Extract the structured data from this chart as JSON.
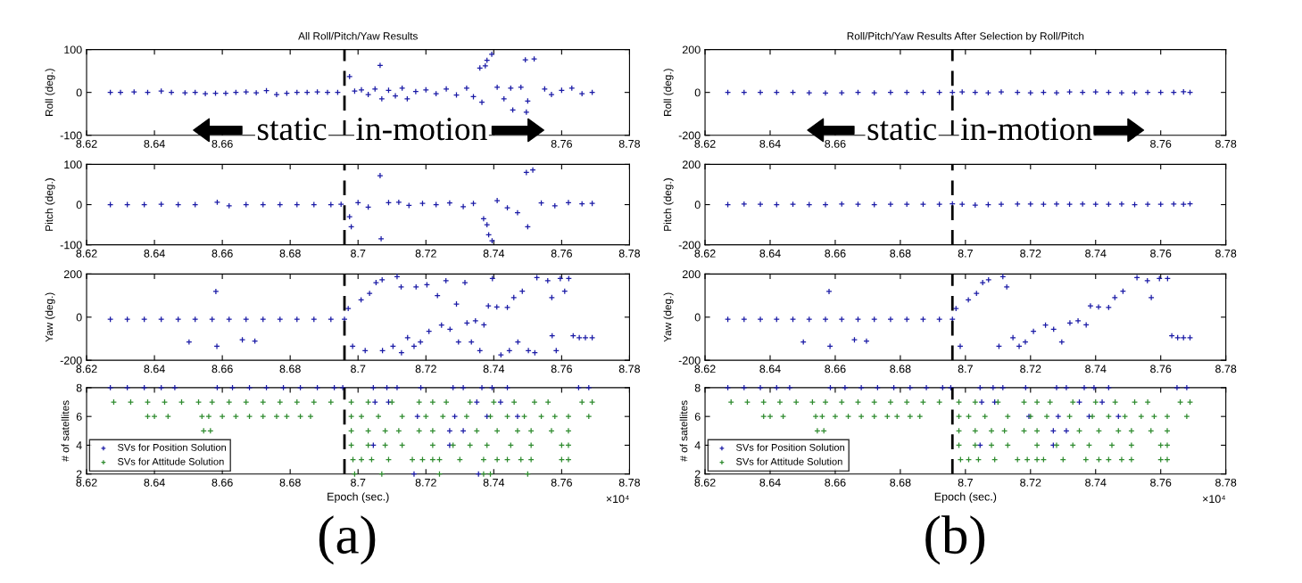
{
  "chart_data": [
    {
      "type": "scatter",
      "title": "All Roll/Pitch/Yaw Results",
      "ylabel": "Roll (deg.)",
      "xlim": [
        8.62,
        8.78
      ],
      "xticks": [
        8.62,
        8.64,
        8.66,
        {
          "value": 8.68,
          "label": null
        },
        {
          "value": 8.7,
          "label": null
        },
        {
          "value": 8.72,
          "label": null
        },
        {
          "value": 8.74,
          "label": null
        },
        8.76,
        8.78
      ],
      "ylim": [
        -100,
        100
      ],
      "yticks": [
        -100,
        0,
        100
      ],
      "marker": "cross",
      "ref_lines": [
        {
          "axis": "x",
          "value": 8.696,
          "color": "#000000",
          "line_style": "dashed"
        }
      ],
      "annotations": [
        "static",
        "in-motion"
      ],
      "series": [
        {
          "color": "#1a1aa6",
          "x": [
            8.627,
            8.63,
            8.634,
            8.638,
            8.642,
            8.645,
            8.649,
            8.652,
            8.655,
            8.658,
            8.661,
            8.664,
            8.667,
            8.67,
            8.673,
            8.676,
            8.679,
            8.682,
            8.685,
            8.688,
            8.691,
            8.694,
            8.6975,
            8.699,
            8.701,
            8.703,
            8.705,
            8.7065,
            8.707,
            8.709,
            8.711,
            8.713,
            8.7145,
            8.717,
            8.72,
            8.723,
            8.726,
            8.729,
            8.732,
            8.734,
            8.7359,
            8.7365,
            8.7375,
            8.738,
            8.7394,
            8.741,
            8.743,
            8.745,
            8.7456,
            8.748,
            8.7493,
            8.7496,
            8.75,
            8.7519,
            8.755,
            8.757,
            8.76,
            8.763,
            8.766,
            8.769
          ],
          "values": [
            0,
            0,
            1,
            0,
            3,
            0,
            -1,
            0,
            -3,
            -2,
            -2,
            0,
            1,
            -1,
            4,
            -5,
            -2,
            0,
            0,
            1,
            0,
            0,
            37,
            3,
            6,
            -5,
            8,
            63,
            -15,
            5,
            -8,
            10,
            -15,
            2,
            6,
            -3,
            8,
            -6,
            10,
            -10,
            57,
            -23,
            62,
            75,
            89,
            12,
            -15,
            10,
            -41,
            12,
            76,
            -46,
            -20,
            78,
            8,
            -5,
            5,
            10,
            -3,
            0
          ]
        }
      ]
    },
    {
      "type": "scatter",
      "title": "Roll/Pitch/Yaw Results After Selection by Roll/Pitch",
      "ylabel": "Roll (deg.)",
      "xlim": [
        8.62,
        8.78
      ],
      "xticks": [
        8.62,
        8.64,
        8.66,
        {
          "value": 8.68,
          "label": null
        },
        {
          "value": 8.7,
          "label": null
        },
        {
          "value": 8.72,
          "label": null
        },
        {
          "value": 8.74,
          "label": null
        },
        8.76,
        8.78
      ],
      "ylim": [
        -200,
        200
      ],
      "yticks": [
        -200,
        0,
        200
      ],
      "marker": "cross",
      "ref_lines": [
        {
          "axis": "x",
          "value": 8.696,
          "color": "#000000",
          "line_style": "dashed"
        }
      ],
      "annotations": [
        "static",
        "in-motion"
      ],
      "series": [
        {
          "color": "#1a1aa6",
          "x": [
            8.627,
            8.632,
            8.637,
            8.642,
            8.647,
            8.652,
            8.657,
            8.662,
            8.667,
            8.672,
            8.677,
            8.682,
            8.687,
            8.692,
            8.696,
            8.699,
            8.703,
            8.707,
            8.711,
            8.716,
            8.72,
            8.724,
            8.728,
            8.732,
            8.736,
            8.74,
            8.744,
            8.748,
            8.752,
            8.756,
            8.76,
            8.764,
            8.767,
            8.769
          ],
          "values": [
            0,
            0,
            0,
            0,
            0,
            -2,
            -3,
            -2,
            0,
            -2,
            0,
            0,
            0,
            0,
            0,
            2,
            0,
            -2,
            2,
            0,
            -2,
            0,
            -2,
            2,
            0,
            2,
            0,
            -2,
            -2,
            0,
            0,
            0,
            3,
            0
          ]
        }
      ]
    },
    {
      "type": "scatter",
      "ylabel": "Pitch (deg.)",
      "xlim": [
        8.62,
        8.78
      ],
      "xticks": [
        8.62,
        8.64,
        8.66,
        8.68,
        8.7,
        8.72,
        8.74,
        8.76,
        8.78
      ],
      "ylim": [
        -100,
        100
      ],
      "yticks": [
        -100,
        0,
        100
      ],
      "marker": "cross",
      "ref_lines": [
        {
          "axis": "x",
          "value": 8.696,
          "color": "#000000",
          "line_style": "dashed"
        }
      ],
      "series": [
        {
          "color": "#1a1aa6",
          "x": [
            8.627,
            8.632,
            8.637,
            8.642,
            8.647,
            8.652,
            8.6585,
            8.662,
            8.667,
            8.672,
            8.677,
            8.682,
            8.687,
            8.692,
            8.695,
            8.6975,
            8.698,
            8.7,
            8.703,
            8.7065,
            8.7068,
            8.709,
            8.712,
            8.715,
            8.719,
            8.723,
            8.727,
            8.731,
            8.734,
            8.737,
            8.738,
            8.7385,
            8.7395,
            8.741,
            8.744,
            8.747,
            8.7496,
            8.75,
            8.7515,
            8.754,
            8.758,
            8.762,
            8.766,
            8.769
          ],
          "values": [
            0,
            0,
            0,
            1,
            0,
            0,
            6,
            -3,
            0,
            0,
            0,
            0,
            0,
            0,
            1,
            -30,
            -55,
            5,
            -6,
            72,
            -85,
            5,
            6,
            -2,
            3,
            0,
            4,
            -5,
            3,
            -35,
            -50,
            -75,
            -90,
            10,
            -8,
            -20,
            80,
            -55,
            86,
            4,
            -3,
            5,
            2,
            3
          ]
        }
      ]
    },
    {
      "type": "scatter",
      "ylabel": "Pitch (deg.)",
      "xlim": [
        8.62,
        8.78
      ],
      "xticks": [
        8.62,
        8.64,
        8.66,
        8.68,
        8.7,
        8.72,
        8.74,
        8.76,
        8.78
      ],
      "ylim": [
        -200,
        200
      ],
      "yticks": [
        -200,
        0,
        200
      ],
      "marker": "cross",
      "ref_lines": [
        {
          "axis": "x",
          "value": 8.696,
          "color": "#000000",
          "line_style": "dashed"
        }
      ],
      "series": [
        {
          "color": "#1a1aa6",
          "x": [
            8.627,
            8.632,
            8.637,
            8.642,
            8.647,
            8.652,
            8.657,
            8.662,
            8.667,
            8.672,
            8.677,
            8.682,
            8.687,
            8.692,
            8.696,
            8.699,
            8.703,
            8.707,
            8.711,
            8.716,
            8.72,
            8.724,
            8.728,
            8.732,
            8.736,
            8.74,
            8.744,
            8.748,
            8.752,
            8.756,
            8.76,
            8.764,
            8.767,
            8.769
          ],
          "values": [
            0,
            3,
            2,
            0,
            2,
            0,
            0,
            3,
            2,
            0,
            2,
            2,
            2,
            2,
            4,
            2,
            -2,
            0,
            2,
            3,
            3,
            2,
            3,
            2,
            3,
            2,
            2,
            3,
            0,
            2,
            2,
            3,
            2,
            4
          ]
        }
      ]
    },
    {
      "type": "scatter",
      "ylabel": "Yaw (deg.)",
      "xlim": [
        8.62,
        8.78
      ],
      "xticks": [
        8.62,
        8.64,
        8.66,
        8.68,
        8.7,
        8.72,
        8.74,
        8.76,
        8.78
      ],
      "ylim": [
        -200,
        200
      ],
      "yticks": [
        -200,
        0,
        200
      ],
      "marker": "cross",
      "ref_lines": [
        {
          "axis": "x",
          "value": 8.696,
          "color": "#000000",
          "line_style": "dashed"
        }
      ],
      "series": [
        {
          "color": "#1a1aa6",
          "x": [
            8.627,
            8.632,
            8.637,
            8.642,
            8.647,
            8.652,
            8.657,
            8.662,
            8.667,
            8.672,
            8.677,
            8.682,
            8.687,
            8.692,
            8.696,
            8.6502,
            8.6581,
            8.6584,
            8.6659,
            8.6696,
            8.6971,
            8.6984,
            8.7009,
            8.7021,
            8.7034,
            8.7053,
            8.7071,
            8.7072,
            8.7103,
            8.7115,
            8.7127,
            8.7128,
            8.7146,
            8.7165,
            8.7171,
            8.7184,
            8.7203,
            8.7209,
            8.7234,
            8.7246,
            8.7259,
            8.7271,
            8.729,
            8.7296,
            8.7315,
            8.7321,
            8.7334,
            8.7346,
            8.7359,
            8.7371,
            8.7384,
            8.7396,
            8.7409,
            8.7421,
            8.744,
            8.7446,
            8.7459,
            8.7471,
            8.7484,
            8.7502,
            8.7521,
            8.7527,
            8.7559,
            8.7571,
            8.7572,
            8.7584,
            8.7596,
            8.7609,
            8.7621,
            8.7634,
            8.7652,
            8.767,
            8.769
          ],
          "values": [
            -10,
            -10,
            -10,
            -10,
            -10,
            -10,
            -10,
            -10,
            -10,
            -10,
            -10,
            -10,
            -10,
            -10,
            -10,
            -115,
            119,
            -135,
            -105,
            -111,
            40,
            -135,
            80,
            -155,
            110,
            160,
            173,
            -155,
            -135,
            188,
            140,
            -165,
            -95,
            -135,
            140,
            -115,
            150,
            -66,
            100,
            -37,
            169,
            -56,
            61,
            -115,
            160,
            -27,
            -115,
            -17,
            -155,
            -36,
            52,
            179,
            47,
            -175,
            45,
            -155,
            91,
            -115,
            120,
            -155,
            -165,
            183,
            169,
            91,
            -86,
            -155,
            179,
            120,
            179,
            -86,
            -95,
            -95,
            -95
          ]
        }
      ]
    },
    {
      "type": "scatter",
      "ylabel": "Yaw (deg.)",
      "xlim": [
        8.62,
        8.78
      ],
      "xticks": [
        8.62,
        8.64,
        8.66,
        8.68,
        8.7,
        8.72,
        8.74,
        8.76,
        8.78
      ],
      "ylim": [
        -200,
        200
      ],
      "yticks": [
        -200,
        0,
        200
      ],
      "marker": "cross",
      "ref_lines": [
        {
          "axis": "x",
          "value": 8.696,
          "color": "#000000",
          "line_style": "dashed"
        }
      ],
      "series": [
        {
          "color": "#1a1aa6",
          "x": [
            8.627,
            8.632,
            8.637,
            8.642,
            8.647,
            8.652,
            8.657,
            8.662,
            8.667,
            8.672,
            8.677,
            8.682,
            8.687,
            8.692,
            8.696,
            8.6502,
            8.6581,
            8.6584,
            8.6659,
            8.6696,
            8.6971,
            8.6984,
            8.7009,
            8.7034,
            8.7053,
            8.7071,
            8.7103,
            8.7115,
            8.7127,
            8.7146,
            8.7165,
            8.7184,
            8.7209,
            8.7246,
            8.7271,
            8.7296,
            8.7321,
            8.7346,
            8.7371,
            8.7384,
            8.7409,
            8.744,
            8.7459,
            8.7484,
            8.7527,
            8.7559,
            8.7571,
            8.7596,
            8.7621,
            8.7634,
            8.7652,
            8.767,
            8.769
          ],
          "values": [
            -10,
            -10,
            -10,
            -10,
            -10,
            -10,
            -10,
            -10,
            -10,
            -10,
            -10,
            -10,
            -10,
            -10,
            -10,
            -115,
            119,
            -135,
            -105,
            -111,
            40,
            -135,
            80,
            110,
            160,
            173,
            -135,
            188,
            140,
            -95,
            -135,
            -115,
            -66,
            -37,
            -56,
            -115,
            -27,
            -17,
            -36,
            52,
            47,
            45,
            91,
            120,
            183,
            169,
            91,
            179,
            179,
            -86,
            -95,
            -95,
            -95
          ]
        }
      ]
    },
    {
      "type": "scatter",
      "ylabel": "# of satellites",
      "xlabel": "Epoch (sec.)",
      "xlim": [
        8.62,
        8.78
      ],
      "xticks": [
        8.62,
        8.64,
        8.66,
        8.68,
        8.7,
        8.72,
        8.74,
        8.76,
        8.78
      ],
      "ylim": [
        2,
        8
      ],
      "yticks": [
        2,
        4,
        6,
        8
      ],
      "marker": "cross",
      "legend": "bottom left",
      "ref_lines": [
        {
          "axis": "x",
          "value": 8.696,
          "color": "#000000",
          "line_style": "dashed"
        }
      ],
      "annotations": [
        "×10⁴",
        "(a)"
      ],
      "series": [
        {
          "name": "SVs for Position Solution",
          "color": "#1a1aa6",
          "x": [
            8.627,
            8.632,
            8.637,
            8.642,
            8.646,
            8.6585,
            8.663,
            8.668,
            8.673,
            8.678,
            8.683,
            8.688,
            8.693,
            8.6955,
            8.7045,
            8.7085,
            8.7115,
            8.7185,
            8.728,
            8.731,
            8.7365,
            8.7395,
            8.744,
            8.765,
            8.768,
            8.705,
            8.709,
            8.735,
            8.742,
            8.7175,
            8.7285,
            8.738,
            8.747,
            8.727,
            8.731,
            8.7045,
            8.727,
            8.7165,
            8.7355
          ],
          "values": [
            8,
            8,
            8,
            8,
            8,
            8,
            8,
            8,
            8,
            8,
            8,
            8,
            8,
            8,
            8,
            8,
            8,
            8,
            8,
            8,
            8,
            8,
            8,
            8,
            8,
            7,
            7,
            7,
            7,
            6,
            6,
            6,
            6,
            5,
            5,
            4,
            4,
            2,
            2
          ]
        },
        {
          "name": "SVs for Attitude Solution",
          "color": "#2e8b2e",
          "x": [
            8.628,
            8.633,
            8.638,
            8.643,
            8.648,
            8.653,
            8.657,
            8.662,
            8.667,
            8.672,
            8.677,
            8.682,
            8.687,
            8.692,
            8.698,
            8.703,
            8.71,
            8.718,
            8.722,
            8.726,
            8.733,
            8.74,
            8.746,
            8.752,
            8.756,
            8.766,
            8.769,
            8.638,
            8.64,
            8.644,
            8.654,
            8.656,
            8.66,
            8.664,
            8.668,
            8.672,
            8.676,
            8.679,
            8.683,
            8.686,
            8.698,
            8.701,
            8.706,
            8.713,
            8.72,
            8.725,
            8.732,
            8.739,
            8.744,
            8.749,
            8.754,
            8.758,
            8.762,
            8.768,
            8.6545,
            8.6565,
            8.698,
            8.703,
            8.708,
            8.712,
            8.718,
            8.722,
            8.735,
            8.741,
            8.747,
            8.751,
            8.757,
            8.762,
            8.698,
            8.703,
            8.708,
            8.713,
            8.722,
            8.728,
            8.733,
            8.738,
            8.745,
            8.751,
            8.76,
            8.762,
            8.6985,
            8.701,
            8.704,
            8.709,
            8.716,
            8.719,
            8.722,
            8.724,
            8.73,
            8.737,
            8.741,
            8.744,
            8.748,
            8.751,
            8.76,
            8.762,
            8.699,
            8.707,
            8.724,
            8.737,
            8.739,
            8.75
          ],
          "values": [
            7,
            7,
            7,
            7,
            7,
            7,
            7,
            7,
            7,
            7,
            7,
            7,
            7,
            7,
            7,
            7,
            7,
            7,
            7,
            7,
            7,
            7,
            7,
            7,
            7,
            7,
            7,
            6,
            6,
            6,
            6,
            6,
            6,
            6,
            6,
            6,
            6,
            6,
            6,
            6,
            6,
            6,
            6,
            6,
            6,
            6,
            6,
            6,
            6,
            6,
            6,
            6,
            6,
            6,
            5,
            5,
            5,
            5,
            5,
            5,
            5,
            5,
            5,
            5,
            5,
            5,
            5,
            5,
            4,
            4,
            4,
            4,
            4,
            4,
            4,
            4,
            4,
            4,
            4,
            4,
            3,
            3,
            3,
            3,
            3,
            3,
            3,
            3,
            3,
            3,
            3,
            3,
            3,
            3,
            3,
            3,
            2,
            2,
            2,
            2,
            2,
            2
          ]
        }
      ]
    },
    {
      "type": "scatter",
      "ylabel": "# of satellites",
      "xlabel": "Epoch (sec.)",
      "xlim": [
        8.62,
        8.78
      ],
      "xticks": [
        8.62,
        8.64,
        8.66,
        8.68,
        8.7,
        8.72,
        8.74,
        8.76,
        8.78
      ],
      "ylim": [
        2,
        8
      ],
      "yticks": [
        2,
        4,
        6,
        8
      ],
      "marker": "cross",
      "legend": "bottom left",
      "ref_lines": [
        {
          "axis": "x",
          "value": 8.696,
          "color": "#000000",
          "line_style": "dashed"
        }
      ],
      "annotations": [
        "×10⁴",
        "(b)"
      ],
      "series": [
        {
          "name": "SVs for Position Solution",
          "color": "#1a1aa6",
          "x": [
            8.627,
            8.632,
            8.637,
            8.642,
            8.646,
            8.6585,
            8.663,
            8.668,
            8.673,
            8.678,
            8.683,
            8.688,
            8.693,
            8.6955,
            8.7045,
            8.7085,
            8.7115,
            8.7185,
            8.728,
            8.731,
            8.7365,
            8.7395,
            8.744,
            8.765,
            8.768,
            8.705,
            8.709,
            8.735,
            8.742,
            8.7195,
            8.7285,
            8.738,
            8.747,
            8.727,
            8.731,
            8.7045,
            8.727
          ],
          "values": [
            8,
            8,
            8,
            8,
            8,
            8,
            8,
            8,
            8,
            8,
            8,
            8,
            8,
            8,
            8,
            8,
            8,
            8,
            8,
            8,
            8,
            8,
            8,
            8,
            8,
            7,
            7,
            7,
            7,
            6,
            6,
            6,
            6,
            5,
            5,
            4,
            4
          ]
        },
        {
          "name": "SVs for Attitude Solution",
          "color": "#2e8b2e",
          "x": [
            8.628,
            8.633,
            8.638,
            8.643,
            8.648,
            8.653,
            8.657,
            8.662,
            8.667,
            8.672,
            8.677,
            8.682,
            8.687,
            8.692,
            8.698,
            8.703,
            8.71,
            8.718,
            8.722,
            8.726,
            8.733,
            8.74,
            8.746,
            8.752,
            8.756,
            8.766,
            8.769,
            8.638,
            8.64,
            8.644,
            8.654,
            8.656,
            8.66,
            8.664,
            8.668,
            8.672,
            8.676,
            8.679,
            8.683,
            8.686,
            8.698,
            8.701,
            8.706,
            8.713,
            8.72,
            8.725,
            8.732,
            8.739,
            8.744,
            8.749,
            8.754,
            8.758,
            8.762,
            8.768,
            8.6545,
            8.6565,
            8.698,
            8.703,
            8.708,
            8.712,
            8.718,
            8.722,
            8.735,
            8.741,
            8.747,
            8.751,
            8.757,
            8.762,
            8.698,
            8.703,
            8.708,
            8.713,
            8.722,
            8.728,
            8.733,
            8.738,
            8.745,
            8.751,
            8.76,
            8.762,
            8.6985,
            8.701,
            8.704,
            8.709,
            8.716,
            8.719,
            8.722,
            8.724,
            8.73,
            8.737,
            8.741,
            8.744,
            8.748,
            8.751,
            8.76,
            8.762
          ],
          "values": [
            7,
            7,
            7,
            7,
            7,
            7,
            7,
            7,
            7,
            7,
            7,
            7,
            7,
            7,
            7,
            7,
            7,
            7,
            7,
            7,
            7,
            7,
            7,
            7,
            7,
            7,
            7,
            6,
            6,
            6,
            6,
            6,
            6,
            6,
            6,
            6,
            6,
            6,
            6,
            6,
            6,
            6,
            6,
            6,
            6,
            6,
            6,
            6,
            6,
            6,
            6,
            6,
            6,
            6,
            5,
            5,
            5,
            5,
            5,
            5,
            5,
            5,
            5,
            5,
            5,
            5,
            5,
            5,
            4,
            4,
            4,
            4,
            4,
            4,
            4,
            4,
            4,
            4,
            4,
            4,
            3,
            3,
            3,
            3,
            3,
            3,
            3,
            3,
            3,
            3,
            3,
            3,
            3,
            3,
            3,
            3
          ]
        }
      ]
    }
  ]
}
